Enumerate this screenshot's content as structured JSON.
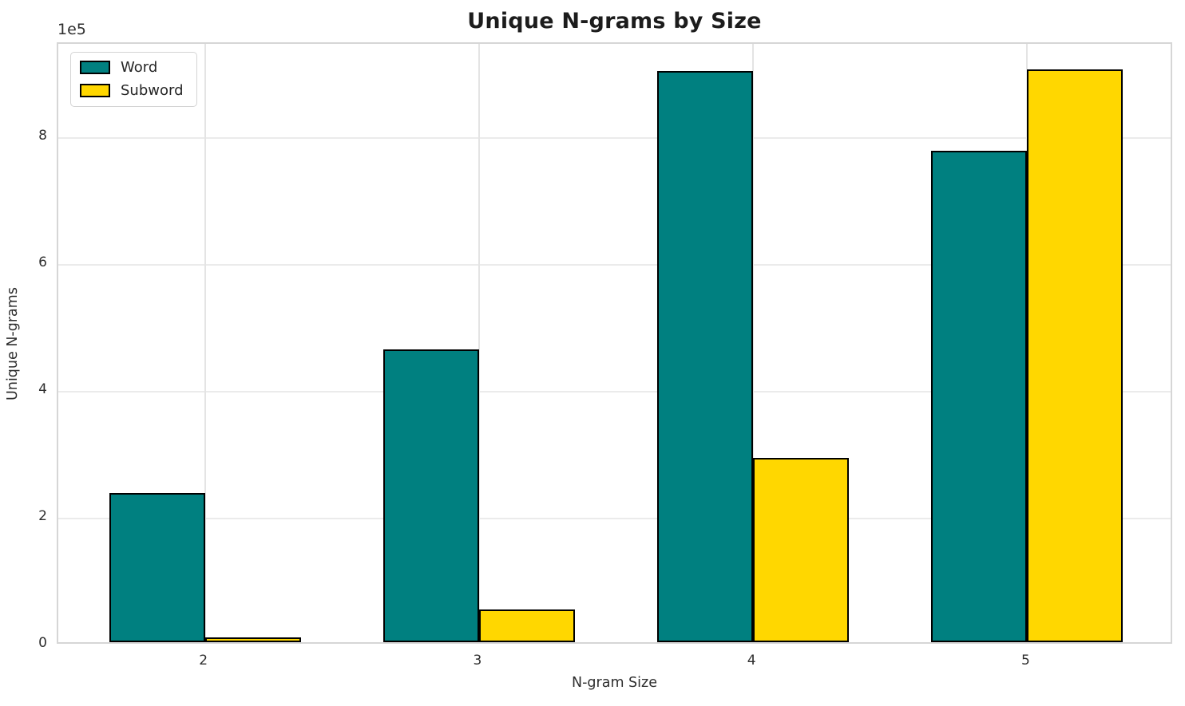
{
  "chart": {
    "title": "Unique N-grams by Size",
    "xlabel": "N-gram Size",
    "ylabel": "Unique N-grams",
    "offset_text": "1e5"
  },
  "legend": {
    "position": "upper left",
    "items": [
      {
        "label": "Word",
        "color": "#008080"
      },
      {
        "label": "Subword",
        "color": "#FFD700"
      }
    ]
  },
  "chart_data": {
    "type": "bar",
    "title": "Unique N-grams by Size",
    "xlabel": "N-gram Size",
    "ylabel": "Unique N-grams",
    "categories": [
      "2",
      "3",
      "4",
      "5"
    ],
    "category_x": [
      2,
      3,
      4,
      5
    ],
    "series": [
      {
        "name": "Word",
        "color": "#008080",
        "values": [
          235000,
          461000,
          900000,
          775000
        ]
      },
      {
        "name": "Subword",
        "color": "#FFD700",
        "values": [
          7000,
          52000,
          290000,
          903000
        ]
      }
    ],
    "bar_width": 0.35,
    "bar_edge_color": "#000000",
    "xlim": [
      1.465,
      5.535
    ],
    "ylim": [
      0,
      948000
    ],
    "yticks": [
      {
        "value": 0,
        "label": "0"
      },
      {
        "value": 200000,
        "label": "2"
      },
      {
        "value": 400000,
        "label": "4"
      },
      {
        "value": 600000,
        "label": "6"
      },
      {
        "value": 800000,
        "label": "8"
      }
    ],
    "y_offset_text": "1e5",
    "grid": true,
    "legend_position": "upper left"
  },
  "colors": {
    "background": "#ffffff",
    "grid_h": "#ebebeb",
    "grid_v": "#e4e4e4",
    "spine": "#d6d6d6",
    "text": "#262626",
    "title_text": "#1c1c1c"
  }
}
